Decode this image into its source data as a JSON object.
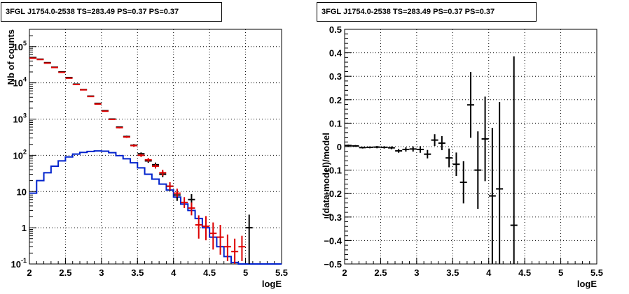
{
  "chart_data": [
    {
      "type": "histogram",
      "title": "3FGL J1754.0-2538 TS=283.49 PS=0.37 PS=0.37",
      "xlabel": "logE",
      "ylabel": "Nb of counts",
      "xlim": [
        2,
        5.5
      ],
      "ylim": [
        0.1,
        300000
      ],
      "ylog": true,
      "grid": true,
      "xticks": [
        "2",
        "2.5",
        "3",
        "3.5",
        "4",
        "4.5",
        "5",
        "5.5"
      ],
      "yticks": [
        {
          "v": 0.1,
          "label": "10",
          "exp": "-1"
        },
        {
          "v": 1,
          "label": "1",
          "exp": ""
        },
        {
          "v": 10,
          "label": "10",
          "exp": ""
        },
        {
          "v": 100,
          "label": "10",
          "exp": "2"
        },
        {
          "v": 1000,
          "label": "10",
          "exp": "3"
        },
        {
          "v": 10000,
          "label": "10",
          "exp": "4"
        },
        {
          "v": 100000,
          "label": "10",
          "exp": "5"
        }
      ],
      "bin_edges": [
        2.0,
        2.1,
        2.2,
        2.3,
        2.4,
        2.5,
        2.6,
        2.7,
        2.8,
        2.9,
        3.0,
        3.1,
        3.2,
        3.3,
        3.4,
        3.5,
        3.6,
        3.7,
        3.8,
        3.9,
        4.0,
        4.1,
        4.2,
        4.3,
        4.4,
        4.5,
        4.6,
        4.7,
        4.8,
        4.9,
        5.0,
        5.1,
        5.2,
        5.3,
        5.4,
        5.5
      ],
      "series": [
        {
          "kind": "points",
          "color": "#000000",
          "points": [
            {
              "x": 2.05,
              "y": 50000,
              "lo": 49500,
              "hi": 50500
            },
            {
              "x": 2.15,
              "y": 45000,
              "lo": 44500,
              "hi": 45500
            },
            {
              "x": 2.25,
              "y": 36000,
              "lo": 35600,
              "hi": 36400
            },
            {
              "x": 2.35,
              "y": 27000,
              "lo": 26700,
              "hi": 27300
            },
            {
              "x": 2.45,
              "y": 20000,
              "lo": 19700,
              "hi": 20300
            },
            {
              "x": 2.55,
              "y": 14000,
              "lo": 13800,
              "hi": 14200
            },
            {
              "x": 2.65,
              "y": 9200,
              "lo": 9000,
              "hi": 9400
            },
            {
              "x": 2.75,
              "y": 6500,
              "lo": 6350,
              "hi": 6650
            },
            {
              "x": 2.85,
              "y": 4300,
              "lo": 4200,
              "hi": 4400
            },
            {
              "x": 2.95,
              "y": 2700,
              "lo": 2640,
              "hi": 2760
            },
            {
              "x": 3.05,
              "y": 1700,
              "lo": 1660,
              "hi": 1740
            },
            {
              "x": 3.15,
              "y": 1000,
              "lo": 970,
              "hi": 1030
            },
            {
              "x": 3.25,
              "y": 600,
              "lo": 575,
              "hi": 625
            },
            {
              "x": 3.35,
              "y": 330,
              "lo": 312,
              "hi": 348
            },
            {
              "x": 3.45,
              "y": 190,
              "lo": 176,
              "hi": 204
            },
            {
              "x": 3.55,
              "y": 110,
              "lo": 100,
              "hi": 120
            },
            {
              "x": 3.65,
              "y": 70,
              "lo": 62,
              "hi": 78
            },
            {
              "x": 3.75,
              "y": 55,
              "lo": 47,
              "hi": 63
            },
            {
              "x": 3.85,
              "y": 30,
              "lo": 25,
              "hi": 36
            },
            {
              "x": 3.95,
              "y": 14,
              "lo": 10.5,
              "hi": 18
            },
            {
              "x": 4.05,
              "y": 8,
              "lo": 5.5,
              "hi": 11
            },
            {
              "x": 4.25,
              "y": 6,
              "lo": 3.8,
              "hi": 8.5
            },
            {
              "x": 5.05,
              "y": 1,
              "lo": 0.1,
              "hi": 2.3
            }
          ]
        },
        {
          "kind": "points",
          "color": "#dd0000",
          "points": [
            {
              "x": 2.05,
              "y": 48000,
              "lo": 47500,
              "hi": 48500
            },
            {
              "x": 2.15,
              "y": 44000,
              "lo": 43500,
              "hi": 44500
            },
            {
              "x": 2.25,
              "y": 35000,
              "lo": 34600,
              "hi": 35400
            },
            {
              "x": 2.35,
              "y": 26500,
              "lo": 26200,
              "hi": 26800
            },
            {
              "x": 2.45,
              "y": 19500,
              "lo": 19200,
              "hi": 19800
            },
            {
              "x": 2.55,
              "y": 13500,
              "lo": 13300,
              "hi": 13700
            },
            {
              "x": 2.65,
              "y": 9000,
              "lo": 8800,
              "hi": 9200
            },
            {
              "x": 2.75,
              "y": 6400,
              "lo": 6250,
              "hi": 6550
            },
            {
              "x": 2.85,
              "y": 4200,
              "lo": 4100,
              "hi": 4300
            },
            {
              "x": 2.95,
              "y": 2600,
              "lo": 2540,
              "hi": 2660
            },
            {
              "x": 3.05,
              "y": 1650,
              "lo": 1610,
              "hi": 1690
            },
            {
              "x": 3.15,
              "y": 980,
              "lo": 950,
              "hi": 1010
            },
            {
              "x": 3.25,
              "y": 580,
              "lo": 555,
              "hi": 605
            },
            {
              "x": 3.35,
              "y": 320,
              "lo": 302,
              "hi": 338
            },
            {
              "x": 3.45,
              "y": 185,
              "lo": 171,
              "hi": 199
            },
            {
              "x": 3.55,
              "y": 100,
              "lo": 90,
              "hi": 110
            },
            {
              "x": 3.65,
              "y": 75,
              "lo": 66,
              "hi": 84
            },
            {
              "x": 3.75,
              "y": 50,
              "lo": 43,
              "hi": 58
            },
            {
              "x": 3.85,
              "y": 33,
              "lo": 27,
              "hi": 40
            },
            {
              "x": 3.95,
              "y": 14,
              "lo": 11,
              "hi": 18
            },
            {
              "x": 4.05,
              "y": 9,
              "lo": 7,
              "hi": 12
            },
            {
              "x": 4.15,
              "y": 5,
              "lo": 3.5,
              "hi": 7
            },
            {
              "x": 4.25,
              "y": 3.5,
              "lo": 2.2,
              "hi": 5
            },
            {
              "x": 4.35,
              "y": 1.2,
              "lo": 0.5,
              "hi": 2.2
            },
            {
              "x": 4.45,
              "y": 1.1,
              "lo": 0.45,
              "hi": 2.1
            },
            {
              "x": 4.55,
              "y": 0.7,
              "lo": 0.25,
              "hi": 1.4
            },
            {
              "x": 4.65,
              "y": 0.55,
              "lo": 0.18,
              "hi": 1.2
            },
            {
              "x": 4.75,
              "y": 0.3,
              "lo": 0.12,
              "hi": 0.65
            },
            {
              "x": 4.85,
              "y": 0.22,
              "lo": 0.1,
              "hi": 0.5
            },
            {
              "x": 4.95,
              "y": 0.3,
              "lo": 0.12,
              "hi": 0.6
            }
          ]
        },
        {
          "kind": "step",
          "color": "#0022cc",
          "values": [
            9,
            20,
            33,
            50,
            70,
            90,
            108,
            120,
            128,
            132,
            130,
            118,
            98,
            80,
            62,
            45,
            30,
            22,
            16,
            11,
            7,
            4.5,
            3,
            1.8,
            1.0,
            0.55,
            0.3,
            0.16,
            0.11,
            0.1,
            0.1,
            0.1,
            0.1,
            0.1,
            0.1
          ]
        }
      ]
    },
    {
      "type": "scatter",
      "title": "3FGL J1754.0-2538 TS=283.49 PS=0.37 PS=0.37",
      "xlabel": "logE",
      "ylabel": "(data-model)/model",
      "xlim": [
        2,
        5.5
      ],
      "ylim": [
        -0.5,
        0.5
      ],
      "grid": true,
      "xticks": [
        "2",
        "2.5",
        "3",
        "3.5",
        "4",
        "4.5",
        "5",
        "5.5"
      ],
      "yticks": [
        "-0.5",
        "-0.4",
        "-0.3",
        "-0.2",
        "-0.1",
        "0",
        "0.1",
        "0.2",
        "0.3",
        "0.4",
        "0.5"
      ],
      "series": [
        {
          "color": "#000000",
          "points": [
            {
              "x": 2.05,
              "y": 0.005,
              "e": 0.004
            },
            {
              "x": 2.15,
              "y": 0.003,
              "e": 0.004
            },
            {
              "x": 2.25,
              "y": -0.004,
              "e": 0.004
            },
            {
              "x": 2.35,
              "y": -0.003,
              "e": 0.004
            },
            {
              "x": 2.45,
              "y": -0.002,
              "e": 0.005
            },
            {
              "x": 2.55,
              "y": -0.003,
              "e": 0.005
            },
            {
              "x": 2.65,
              "y": -0.005,
              "e": 0.006
            },
            {
              "x": 2.75,
              "y": -0.018,
              "e": 0.008
            },
            {
              "x": 2.85,
              "y": -0.012,
              "e": 0.009
            },
            {
              "x": 2.95,
              "y": -0.01,
              "e": 0.011
            },
            {
              "x": 3.05,
              "y": -0.012,
              "e": 0.014
            },
            {
              "x": 3.15,
              "y": -0.032,
              "e": 0.018
            },
            {
              "x": 3.25,
              "y": 0.028,
              "e": 0.025
            },
            {
              "x": 3.35,
              "y": 0.015,
              "e": 0.03
            },
            {
              "x": 3.45,
              "y": -0.048,
              "e": 0.04
            },
            {
              "x": 3.55,
              "y": -0.075,
              "e": 0.05
            },
            {
              "x": 3.65,
              "y": -0.152,
              "e": 0.09
            },
            {
              "x": 3.75,
              "y": 0.178,
              "e": 0.14
            },
            {
              "x": 3.85,
              "y": -0.1,
              "e": 0.165
            },
            {
              "x": 3.95,
              "y": 0.033,
              "e": 0.18
            },
            {
              "x": 4.05,
              "y": -0.21,
              "e": 0.29
            },
            {
              "x": 4.15,
              "y": -0.18,
              "e": 0.37
            },
            {
              "x": 4.35,
              "y": -0.335,
              "e": 0.72
            }
          ]
        }
      ]
    }
  ]
}
